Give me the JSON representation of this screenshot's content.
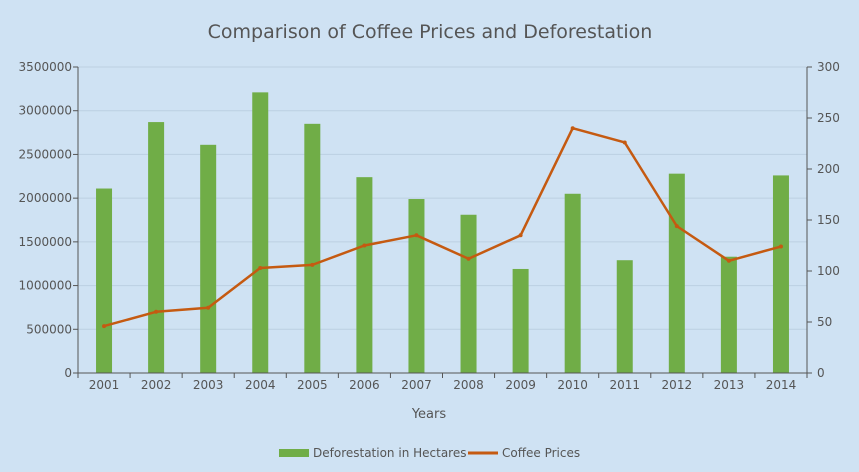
{
  "chart_data": {
    "type": "bar",
    "title": "Comparison of Coffee Prices and Deforestation",
    "xlabel": "Years",
    "ylabel": "",
    "y2label": "",
    "categories": [
      "2001",
      "2002",
      "2003",
      "2004",
      "2005",
      "2006",
      "2007",
      "2008",
      "2009",
      "2010",
      "2011",
      "2012",
      "2013",
      "2014"
    ],
    "series": [
      {
        "name": "Deforestation in Hectares",
        "type": "bar",
        "axis": "left",
        "color": "#70ad47",
        "values": [
          2110000,
          2870000,
          2610000,
          3210000,
          2850000,
          2240000,
          1990000,
          1810000,
          1190000,
          2050000,
          1290000,
          2280000,
          1330000,
          2260000
        ]
      },
      {
        "name": "Coffee Prices",
        "type": "line",
        "axis": "right",
        "color": "#c55a11",
        "values": [
          46,
          60,
          64,
          103,
          106,
          125,
          135,
          112,
          135,
          240,
          226,
          144,
          110,
          124
        ]
      }
    ],
    "ylim": [
      0,
      3500000
    ],
    "y2lim": [
      0,
      300
    ],
    "y_ticks": [
      "0",
      "500000",
      "1000000",
      "1500000",
      "2000000",
      "2500000",
      "3000000",
      "3500000"
    ],
    "y2_ticks": [
      "0",
      "50",
      "100",
      "150",
      "200",
      "250",
      "300"
    ],
    "grid": true,
    "legend": "bottom-center"
  }
}
